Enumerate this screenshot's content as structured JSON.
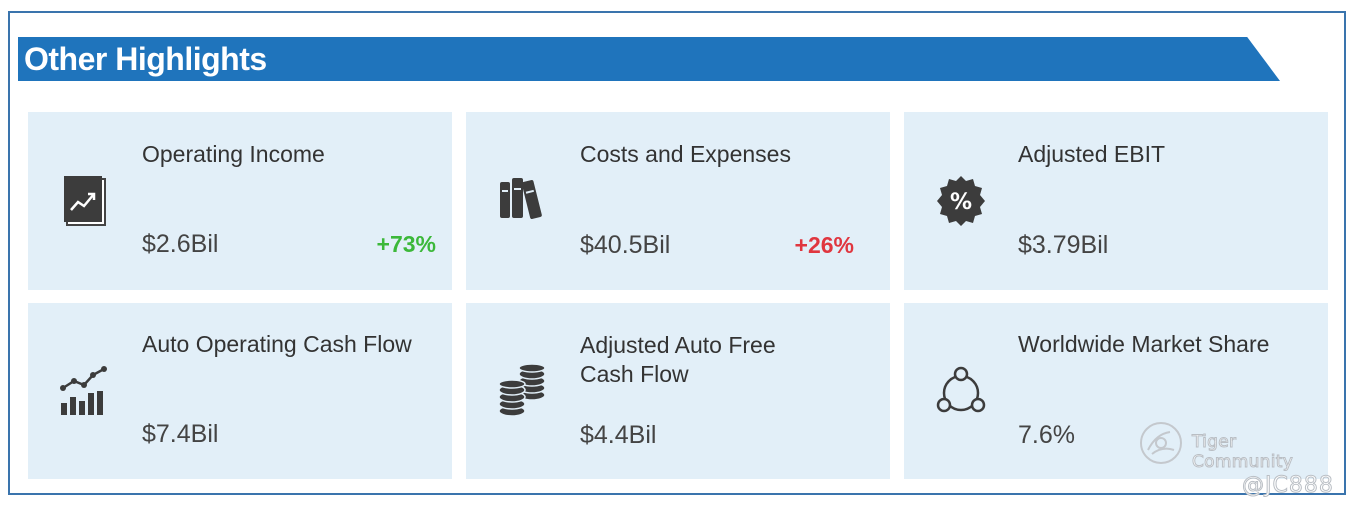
{
  "header": {
    "title": "Other Highlights"
  },
  "cards": [
    {
      "label": "Operating Income",
      "value": "$2.6Bil",
      "change": "+73%",
      "icon": "report-chart-icon"
    },
    {
      "label": "Costs and Expenses",
      "value": "$40.5Bil",
      "change": "+26%",
      "icon": "books-icon"
    },
    {
      "label": "Adjusted EBIT",
      "value": "$3.79Bil",
      "change": "",
      "icon": "percent-badge-icon"
    },
    {
      "label": "Auto Operating Cash Flow",
      "value": "$7.4Bil",
      "change": "",
      "icon": "bar-line-chart-icon"
    },
    {
      "label": "Adjusted Auto Free Cash Flow",
      "value": "$4.4Bil",
      "change": "",
      "icon": "coin-stacks-icon"
    },
    {
      "label": "Worldwide Market Share",
      "value": "7.6%",
      "change": "",
      "icon": "network-circle-icon"
    }
  ],
  "watermark": {
    "brand": "Tiger Community",
    "handle": "@JC888"
  },
  "colors": {
    "banner": "#1f74bc",
    "card_bg": "#e2eff8",
    "positive": "#3cb83a",
    "negative": "#e0363f"
  }
}
